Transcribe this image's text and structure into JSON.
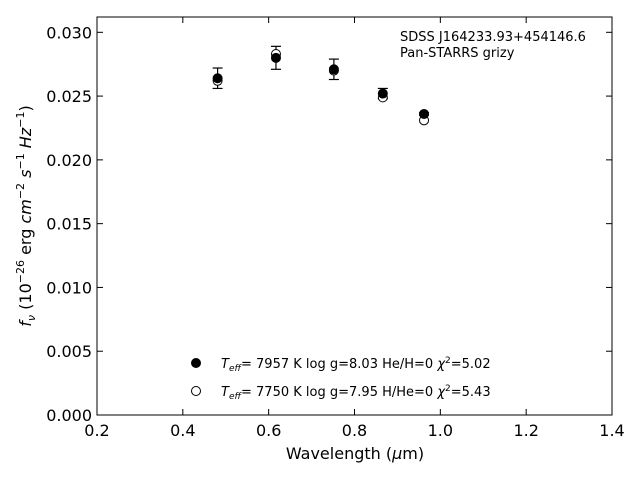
{
  "chart_data": {
    "type": "scatter",
    "xlabel": "Wavelength (μm)",
    "ylabel": "f_ν (10^-26 erg cm^-2 s^-1 Hz^-1)",
    "xlim": [
      0.2,
      1.4
    ],
    "ylim": [
      0.0,
      0.0312
    ],
    "xticks": [
      "0.2",
      "0.4",
      "0.6",
      "0.8",
      "1.0",
      "1.2",
      "1.4"
    ],
    "yticks": [
      "0.000",
      "0.005",
      "0.010",
      "0.015",
      "0.020",
      "0.025",
      "0.030"
    ],
    "annotations": [
      "SDSS J164233.93+454146.6",
      "Pan-STARRS grizy"
    ],
    "legend_position": "lower center",
    "grid": false,
    "series": [
      {
        "name": "Teff= 7957 K log g=8.03 He/H=0 χ2=5.02",
        "marker": "filled-circle",
        "x": [
          0.481,
          0.617,
          0.752,
          0.866,
          0.962
        ],
        "y": [
          0.0264,
          0.028,
          0.0271,
          0.0252,
          0.0236
        ],
        "yerr": [
          0.0008,
          0.0009,
          0.0008,
          0.0004,
          0.0001
        ]
      },
      {
        "name": "Teff= 7750 K log g=7.95 H/He=0 χ2=5.43",
        "marker": "open-circle",
        "x": [
          0.481,
          0.617,
          0.752,
          0.866,
          0.962
        ],
        "y": [
          0.0262,
          0.0283,
          0.027,
          0.0249,
          0.0231
        ]
      }
    ]
  },
  "legend": [
    {
      "teff_value": "7957 K",
      "params": "log g=8.03  He/H=0",
      "chi_value": "=5.02"
    },
    {
      "teff_value": "7750 K",
      "params": "log g=7.95  H/He=0",
      "chi_value": "=5.43"
    }
  ],
  "colors": {
    "marker": "#000000",
    "axis": "#000000",
    "background": "#ffffff"
  }
}
